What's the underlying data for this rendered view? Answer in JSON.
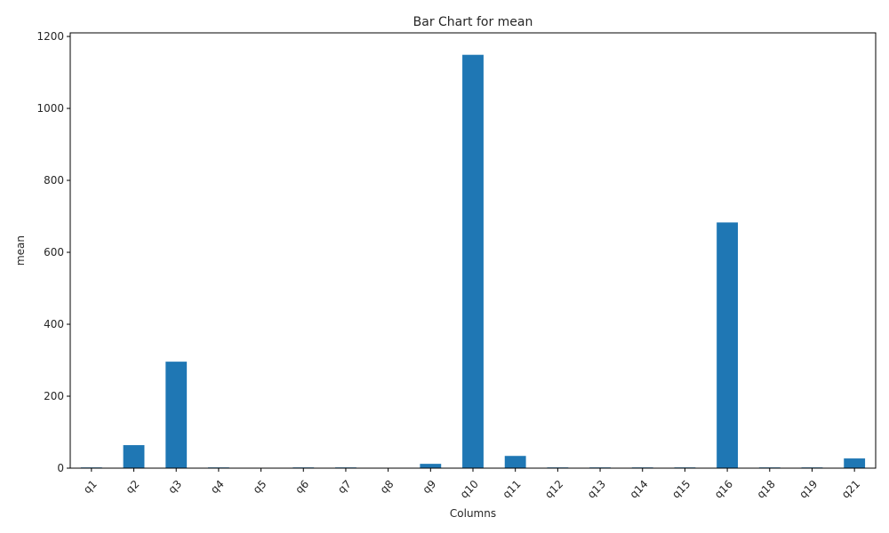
{
  "chart_data": {
    "type": "bar",
    "title": "Bar Chart for mean",
    "xlabel": "Columns",
    "ylabel": "mean",
    "categories": [
      "q1",
      "q2",
      "q3",
      "q4",
      "q5",
      "q6",
      "q7",
      "q8",
      "q9",
      "q10",
      "q11",
      "q12",
      "q13",
      "q14",
      "q15",
      "q16",
      "q18",
      "q19",
      "q21"
    ],
    "values": [
      2,
      64,
      296,
      2,
      0.5,
      2,
      2,
      0.5,
      12,
      1149,
      34,
      2,
      2,
      2,
      2,
      683,
      2,
      2,
      27
    ],
    "ylim": [
      0,
      1210
    ],
    "yticks": [
      0,
      200,
      400,
      600,
      800,
      1000,
      1200
    ],
    "bar_color": "#1f77b4",
    "grid": false,
    "legend": "none"
  }
}
